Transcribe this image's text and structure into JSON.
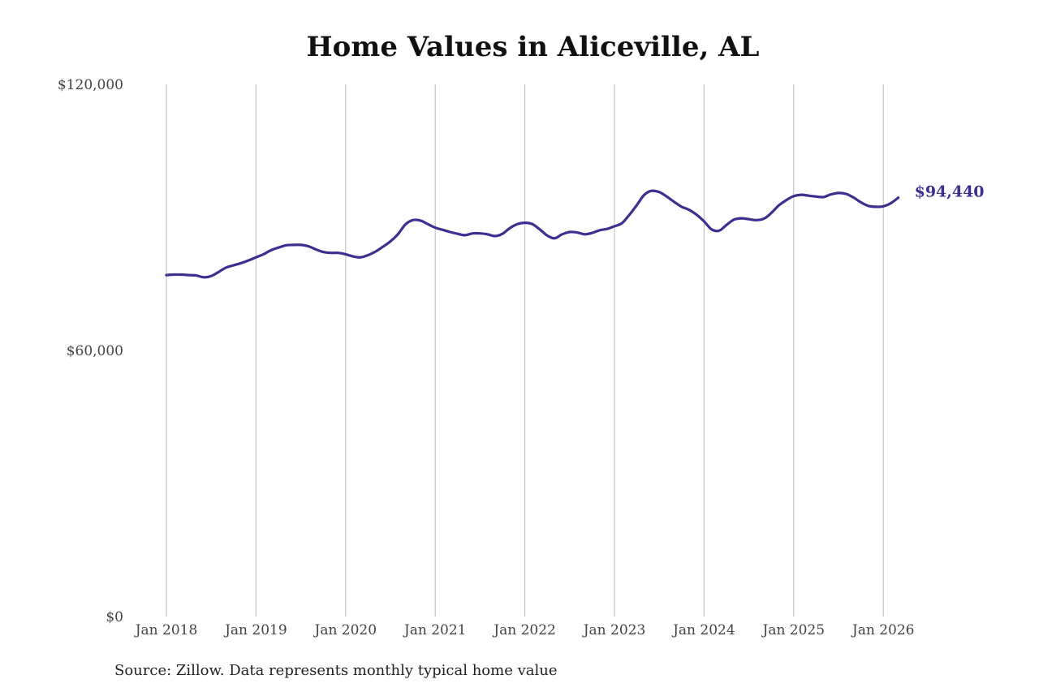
{
  "title": "Home Values in Aliceville, AL",
  "source": "Source: Zillow. Data represents monthly typical home value",
  "colors": {
    "line": "#3b2f8f",
    "grid": "#bbbbbb",
    "text": "#444444"
  },
  "chart_data": {
    "type": "line",
    "title": "Home Values in Aliceville, AL",
    "xlabel": "",
    "ylabel": "",
    "ylim": [
      0,
      120000
    ],
    "y_ticks": [
      0,
      60000,
      120000
    ],
    "y_tick_labels": [
      "$0",
      "$60,000",
      "$120,000"
    ],
    "x_ticks": [
      "2018-01",
      "2019-01",
      "2020-01",
      "2021-01",
      "2022-01",
      "2023-01",
      "2024-01",
      "2025-01",
      "2026-01"
    ],
    "x_tick_labels": [
      "Jan 2018",
      "Jan 2019",
      "Jan 2020",
      "Jan 2021",
      "Jan 2022",
      "Jan 2023",
      "Jan 2024",
      "Jan 2025",
      "Jan 2026"
    ],
    "grid": "vertical",
    "end_label": "$94,440",
    "series": [
      {
        "x": [
          "2018-01",
          "2018-02",
          "2018-03",
          "2018-04",
          "2018-05",
          "2018-06",
          "2018-07",
          "2018-08",
          "2018-09",
          "2018-10",
          "2018-11",
          "2018-12",
          "2019-01",
          "2019-02",
          "2019-03",
          "2019-04",
          "2019-05",
          "2019-06",
          "2019-07",
          "2019-08",
          "2019-09",
          "2019-10",
          "2019-11",
          "2019-12",
          "2020-01",
          "2020-02",
          "2020-03",
          "2020-04",
          "2020-05",
          "2020-06",
          "2020-07",
          "2020-08",
          "2020-09",
          "2020-10",
          "2020-11",
          "2020-12",
          "2021-01",
          "2021-02",
          "2021-03",
          "2021-04",
          "2021-05",
          "2021-06",
          "2021-07",
          "2021-08",
          "2021-09",
          "2021-10",
          "2021-11",
          "2021-12",
          "2022-01",
          "2022-02",
          "2022-03",
          "2022-04",
          "2022-05",
          "2022-06",
          "2022-07",
          "2022-08",
          "2022-09",
          "2022-10",
          "2022-11",
          "2022-12",
          "2023-01",
          "2023-02",
          "2023-03",
          "2023-04",
          "2023-05",
          "2023-06",
          "2023-07",
          "2023-08",
          "2023-09",
          "2023-10",
          "2023-11",
          "2023-12",
          "2024-01",
          "2024-02",
          "2024-03",
          "2024-04",
          "2024-05",
          "2024-06",
          "2024-07",
          "2024-08",
          "2024-09",
          "2024-10",
          "2024-11",
          "2024-12",
          "2025-01",
          "2025-02",
          "2025-03",
          "2025-04",
          "2025-05",
          "2025-06",
          "2025-07",
          "2025-08",
          "2025-09",
          "2025-10",
          "2025-11",
          "2025-12",
          "2026-01",
          "2026-02",
          "2026-03"
        ],
        "values": [
          77000,
          77100,
          77100,
          77000,
          76900,
          76500,
          76800,
          77700,
          78700,
          79200,
          79700,
          80300,
          81000,
          81700,
          82600,
          83200,
          83700,
          83800,
          83800,
          83500,
          82800,
          82200,
          82000,
          82000,
          81700,
          81200,
          81000,
          81500,
          82300,
          83400,
          84600,
          86200,
          88400,
          89400,
          89300,
          88500,
          87700,
          87200,
          86700,
          86300,
          86000,
          86400,
          86400,
          86200,
          85800,
          86300,
          87600,
          88500,
          88800,
          88500,
          87300,
          85900,
          85300,
          86200,
          86700,
          86600,
          86200,
          86500,
          87100,
          87400,
          88000,
          88700,
          90600,
          92800,
          95100,
          96000,
          95700,
          94700,
          93500,
          92400,
          91700,
          90600,
          89100,
          87300,
          87000,
          88300,
          89500,
          89800,
          89600,
          89400,
          89700,
          91000,
          92700,
          93900,
          94800,
          95100,
          94900,
          94700,
          94600,
          95200,
          95500,
          95300,
          94500,
          93400,
          92600,
          92400,
          92500,
          93200,
          94440
        ]
      }
    ]
  }
}
